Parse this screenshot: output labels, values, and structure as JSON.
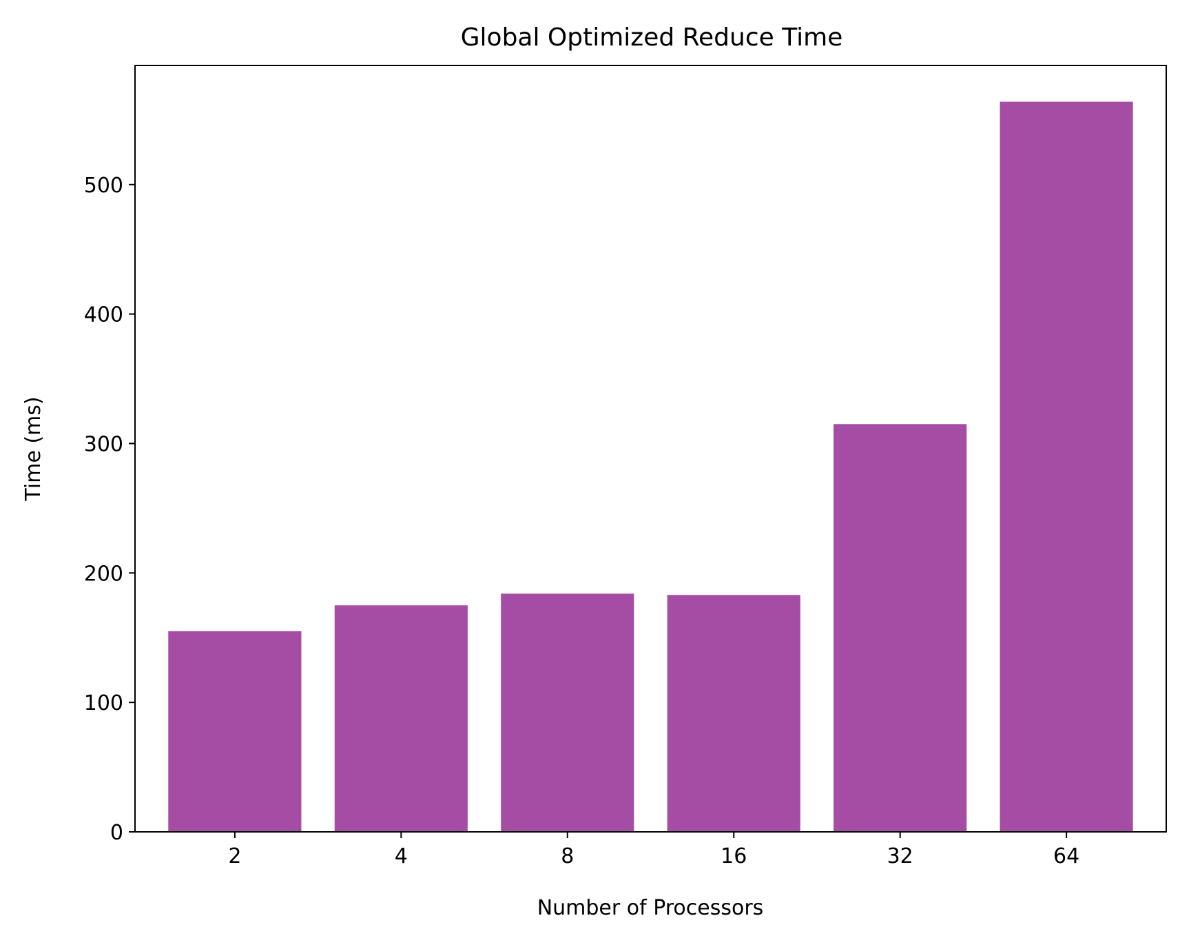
{
  "chart_data": {
    "type": "bar",
    "title": "Global Optimized Reduce Time",
    "xlabel": "Number of Processors",
    "ylabel": "Time (ms)",
    "categories": [
      "2",
      "4",
      "8",
      "16",
      "32",
      "64"
    ],
    "values": [
      155,
      175,
      184,
      183,
      315,
      564
    ],
    "ylim": [
      0,
      592
    ],
    "yticks": [
      0,
      100,
      200,
      300,
      400,
      500
    ],
    "ytick_labels": [
      "0",
      "100",
      "200",
      "300",
      "400",
      "500"
    ],
    "bar_color": "#a54ca5",
    "grid": false,
    "legend": "none"
  }
}
